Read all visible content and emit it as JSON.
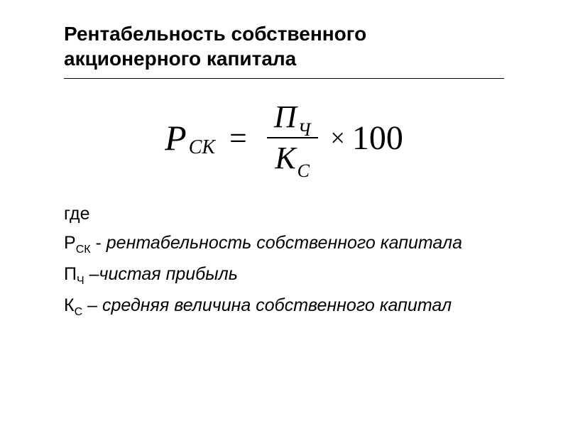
{
  "title": "Рентабельность собственного акционерного капитала",
  "formula": {
    "lhs_var": "Р",
    "lhs_sub": "СК",
    "eq": "=",
    "numer_var": "П",
    "numer_sub": "Ч",
    "denom_var": "К",
    "denom_sub": "С",
    "times": "×",
    "hundred": "100"
  },
  "legend": {
    "where": "где",
    "line1_sym": "Р",
    "line1_sub": "СК",
    "line1_sep": " - ",
    "line1_desc": "рентабельность собственного капитала",
    "line2_sym": "П",
    "line2_sub": "Ч",
    "line2_sep": " –",
    "line2_desc": "чистая прибыль",
    "line3_sym": "К",
    "line3_sub": "С",
    "line3_sep": " – ",
    "line3_desc": "средняя величина собственного капитал"
  },
  "colors": {
    "text": "#000000",
    "background": "#ffffff",
    "border": "#000000"
  },
  "fonts": {
    "title_family": "Arial",
    "title_size": 28,
    "title_weight": "bold",
    "formula_family": "Times New Roman",
    "formula_size": 48,
    "legend_family": "Arial",
    "legend_size": 25
  }
}
